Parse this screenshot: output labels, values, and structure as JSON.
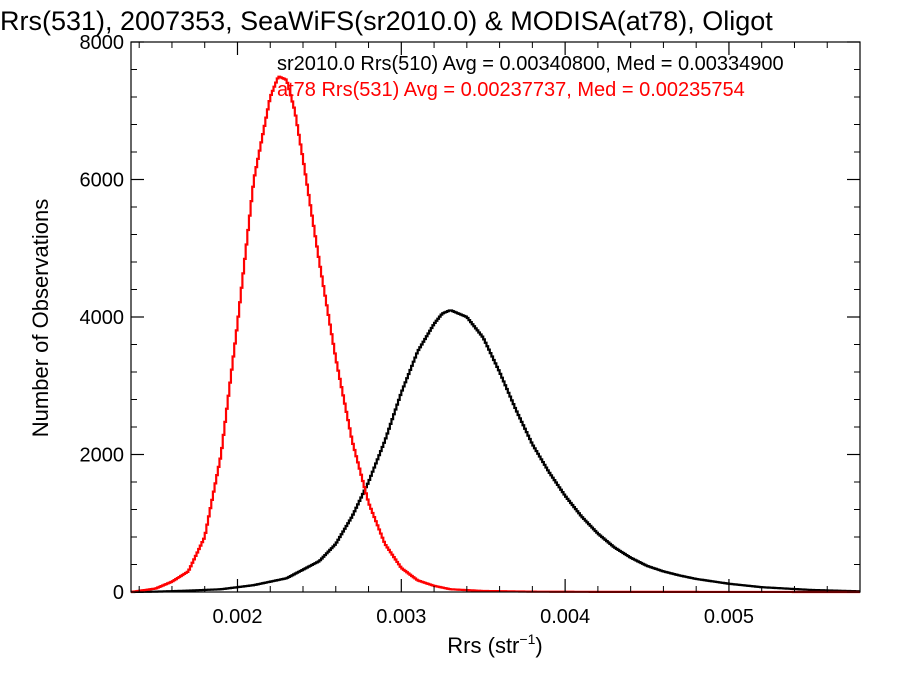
{
  "chart_data": {
    "type": "line",
    "title": "Rrs(531), 2007353, SeaWiFS(sr2010.0) & MODISA(at78), Oligot",
    "xlabel_main": "Rrs (str",
    "xlabel_sup": "−1",
    "xlabel_close": ")",
    "ylabel": "Number of Observations",
    "xlim": [
      0.00135,
      0.0058
    ],
    "ylim": [
      0,
      8000
    ],
    "x_ticks": [
      0.002,
      0.003,
      0.004,
      0.005
    ],
    "x_tick_labels": [
      "0.002",
      "0.003",
      "0.004",
      "0.005"
    ],
    "y_ticks": [
      0,
      2000,
      4000,
      6000,
      8000
    ],
    "y_tick_labels": [
      "0",
      "2000",
      "4000",
      "6000",
      "8000"
    ],
    "grid": false,
    "histogram_step": true,
    "series": [
      {
        "name": "sr2010.0 Rrs(510) Avg = 0.00340800, Med = 0.00334900",
        "color": "#000000",
        "x": [
          0.00135,
          0.0015,
          0.0017,
          0.0019,
          0.0021,
          0.0023,
          0.0025,
          0.0026,
          0.0027,
          0.0028,
          0.0029,
          0.003,
          0.0031,
          0.0032,
          0.00325,
          0.0033,
          0.0034,
          0.0035,
          0.0036,
          0.0037,
          0.0038,
          0.0039,
          0.004,
          0.0041,
          0.0042,
          0.0043,
          0.0044,
          0.0045,
          0.0046,
          0.0047,
          0.0048,
          0.005,
          0.0052,
          0.0055,
          0.0058
        ],
        "values": [
          0,
          5,
          20,
          40,
          100,
          200,
          450,
          700,
          1100,
          1600,
          2200,
          2900,
          3500,
          3900,
          4050,
          4100,
          4000,
          3700,
          3200,
          2650,
          2150,
          1750,
          1400,
          1100,
          850,
          650,
          500,
          380,
          300,
          240,
          190,
          120,
          70,
          30,
          10
        ]
      },
      {
        "name": "at78 Rrs(531) Avg = 0.00237737, Med = 0.00235754",
        "color": "#ff0000",
        "x": [
          0.00135,
          0.0015,
          0.0016,
          0.0017,
          0.0018,
          0.0019,
          0.002,
          0.0021,
          0.0022,
          0.00225,
          0.0023,
          0.00235,
          0.0024,
          0.0025,
          0.0026,
          0.0027,
          0.0028,
          0.0029,
          0.003,
          0.0031,
          0.0032,
          0.0033,
          0.0035,
          0.0038,
          0.0042,
          0.0058
        ],
        "values": [
          0,
          50,
          150,
          300,
          800,
          2000,
          3900,
          6000,
          7200,
          7500,
          7450,
          7000,
          6300,
          4800,
          3400,
          2200,
          1300,
          700,
          350,
          170,
          90,
          40,
          15,
          5,
          2,
          0
        ]
      }
    ],
    "legend": "top-right"
  }
}
